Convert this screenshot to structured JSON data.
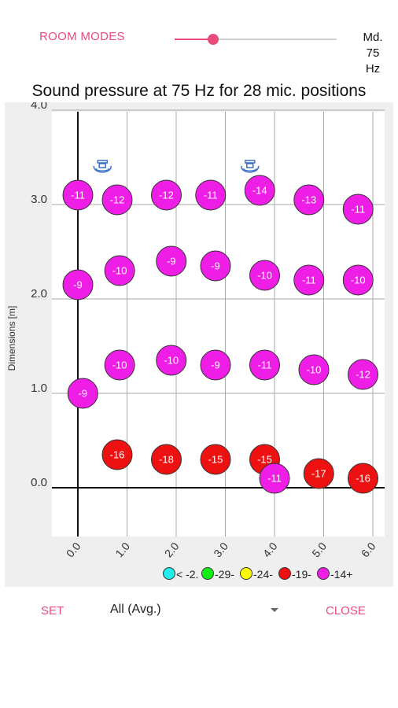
{
  "header": {
    "room_modes_label": "ROOM MODES",
    "slider_fraction": 0.24,
    "mode_lines": [
      "Md.",
      "75",
      "Hz"
    ]
  },
  "chart_title": "Sound pressure at 75 Hz for 28 mic. positions",
  "footer": {
    "set_label": "SET",
    "position_select_value": "All (Avg.)",
    "close_label": "CLOSE"
  },
  "colors": {
    "accent": "#e94b7b",
    "magenta": "#ee1ee6",
    "red": "#ee1111",
    "yellow": "#ffff00",
    "green": "#11ee11",
    "cyan": "#22eeee",
    "speaker": "#3a6ec8"
  },
  "chart_data": {
    "type": "scatter",
    "xlabel": "",
    "ylabel": "Dimensions [m]",
    "xlim": [
      0.0,
      6.0
    ],
    "ylim": [
      0.0,
      4.0
    ],
    "x_ticks": [
      "0.0",
      "1.0",
      "2.0",
      "3.0",
      "4.0",
      "5.0",
      "6.0"
    ],
    "y_ticks": [
      "0.0",
      "1.0",
      "2.0",
      "3.0",
      "4.0"
    ],
    "grid": true,
    "legend": [
      {
        "label": "< -2.",
        "color": "cyan"
      },
      {
        "label": "-29-",
        "color": "green"
      },
      {
        "label": "-24-",
        "color": "yellow"
      },
      {
        "label": "-19-",
        "color": "red"
      },
      {
        "label": "-14+",
        "color": "magenta"
      }
    ],
    "speakers": [
      {
        "x": 0.5,
        "y": 3.4
      },
      {
        "x": 3.5,
        "y": 3.4
      }
    ],
    "points": [
      {
        "x": 0.0,
        "y": 3.1,
        "label": "-11",
        "color": "magenta"
      },
      {
        "x": 0.8,
        "y": 3.05,
        "label": "-12",
        "color": "magenta"
      },
      {
        "x": 1.8,
        "y": 3.1,
        "label": "-12",
        "color": "magenta"
      },
      {
        "x": 2.7,
        "y": 3.1,
        "label": "-11",
        "color": "magenta"
      },
      {
        "x": 3.7,
        "y": 3.15,
        "label": "-14",
        "color": "magenta"
      },
      {
        "x": 4.7,
        "y": 3.05,
        "label": "-13",
        "color": "magenta"
      },
      {
        "x": 5.7,
        "y": 2.95,
        "label": "-11",
        "color": "magenta"
      },
      {
        "x": 0.0,
        "y": 2.15,
        "label": "-9",
        "color": "magenta"
      },
      {
        "x": 0.85,
        "y": 2.3,
        "label": "-10",
        "color": "magenta"
      },
      {
        "x": 1.9,
        "y": 2.4,
        "label": "-9",
        "color": "magenta"
      },
      {
        "x": 2.8,
        "y": 2.35,
        "label": "-9",
        "color": "magenta"
      },
      {
        "x": 3.8,
        "y": 2.25,
        "label": "-10",
        "color": "magenta"
      },
      {
        "x": 4.7,
        "y": 2.2,
        "label": "-11",
        "color": "magenta"
      },
      {
        "x": 5.7,
        "y": 2.2,
        "label": "-10",
        "color": "magenta"
      },
      {
        "x": 0.1,
        "y": 1.0,
        "label": "-9",
        "color": "magenta"
      },
      {
        "x": 0.85,
        "y": 1.3,
        "label": "-10",
        "color": "magenta"
      },
      {
        "x": 1.9,
        "y": 1.35,
        "label": "-10",
        "color": "magenta"
      },
      {
        "x": 2.8,
        "y": 1.3,
        "label": "-9",
        "color": "magenta"
      },
      {
        "x": 3.8,
        "y": 1.3,
        "label": "-11",
        "color": "magenta"
      },
      {
        "x": 4.8,
        "y": 1.25,
        "label": "-10",
        "color": "magenta"
      },
      {
        "x": 5.8,
        "y": 1.2,
        "label": "-12",
        "color": "magenta"
      },
      {
        "x": 0.8,
        "y": 0.35,
        "label": "-16",
        "color": "red"
      },
      {
        "x": 1.8,
        "y": 0.3,
        "label": "-18",
        "color": "red"
      },
      {
        "x": 2.8,
        "y": 0.3,
        "label": "-15",
        "color": "red"
      },
      {
        "x": 3.8,
        "y": 0.3,
        "label": "-15",
        "color": "red"
      },
      {
        "x": 4.9,
        "y": 0.15,
        "label": "-17",
        "color": "red"
      },
      {
        "x": 5.8,
        "y": 0.1,
        "label": "-16",
        "color": "red"
      },
      {
        "x": 4.0,
        "y": 0.1,
        "label": "-11",
        "color": "magenta"
      }
    ]
  }
}
